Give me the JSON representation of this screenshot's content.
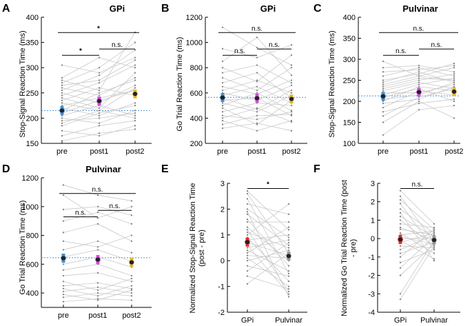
{
  "figure": {
    "panels": [
      {
        "letter": "A",
        "title": "GPi",
        "ylabel": "Stop-Signal Reaction Time (ms)",
        "ticks": [
          150,
          200,
          250,
          300,
          350,
          400
        ],
        "categories": [
          "pre",
          "post1",
          "post2"
        ],
        "means": [
          215,
          234,
          248
        ],
        "refline": 215,
        "colors": [
          "#3d8fd6",
          "#d34ce0",
          "#e2b630"
        ],
        "sig": [
          {
            "from": 0,
            "to": 1,
            "text": "*"
          },
          {
            "from": 1,
            "to": 2,
            "text": "n.s."
          },
          {
            "from": 0,
            "to": 2,
            "text": "*"
          }
        ]
      },
      {
        "letter": "B",
        "title": "GPi",
        "ylabel": "Go Trial Reaction Time (ms)",
        "ticks": [
          200,
          400,
          600,
          800,
          1000,
          1200
        ],
        "categories": [
          "pre",
          "post1",
          "post2"
        ],
        "means": [
          563,
          558,
          552
        ],
        "refline": 565,
        "colors": [
          "#3d8fd6",
          "#d34ce0",
          "#e2b630"
        ],
        "sig": [
          {
            "from": 0,
            "to": 1,
            "text": "n.s."
          },
          {
            "from": 1,
            "to": 2,
            "text": "n.s."
          },
          {
            "from": 0,
            "to": 2,
            "text": "n.s."
          }
        ]
      },
      {
        "letter": "C",
        "title": "Pulvinar",
        "ylabel": "Stop-Signal Reaction Time (ms)",
        "ticks": [
          100,
          150,
          200,
          250,
          300,
          350,
          400
        ],
        "categories": [
          "pre",
          "post1",
          "post2"
        ],
        "means": [
          212,
          222,
          223
        ],
        "refline": 213,
        "colors": [
          "#3d8fd6",
          "#d34ce0",
          "#e2b630"
        ],
        "sig": [
          {
            "from": 0,
            "to": 1,
            "text": "n.s."
          },
          {
            "from": 1,
            "to": 2,
            "text": "n.s."
          },
          {
            "from": 0,
            "to": 2,
            "text": "n.s."
          }
        ]
      },
      {
        "letter": "D",
        "title": "Pulvinar",
        "ylabel": "Go Trial Reaction Time (ms)",
        "ticks": [
          400,
          600,
          800,
          1000,
          1200
        ],
        "categories": [
          "pre",
          "post1",
          "post2"
        ],
        "means": [
          642,
          632,
          613
        ],
        "refline": 645,
        "colors": [
          "#3d8fd6",
          "#d34ce0",
          "#e2b630"
        ],
        "sig": [
          {
            "from": 0,
            "to": 1,
            "text": "n.s."
          },
          {
            "from": 1,
            "to": 2,
            "text": "n.s."
          },
          {
            "from": 0,
            "to": 2,
            "text": "n.s."
          }
        ]
      },
      {
        "letter": "E",
        "title": "",
        "ylabel": "Normalized Stop-Signal Reaction Time (post - pre)",
        "ticks": [
          -2,
          -1,
          0,
          1,
          2,
          3
        ],
        "categories": [
          "GPi",
          "Pulvinar"
        ],
        "means": [
          0.72,
          0.18
        ],
        "refline": null,
        "colors": [
          "#e03030",
          "#9a9a9a"
        ],
        "sig": [
          {
            "from": 0,
            "to": 1,
            "text": "*"
          }
        ]
      },
      {
        "letter": "F",
        "title": "",
        "ylabel": "Normalized Go Trial Reaction Time (post - pre)",
        "ticks": [
          -4,
          -3,
          -2,
          -1,
          0,
          1,
          2,
          3
        ],
        "categories": [
          "GPi",
          "Pulvinar"
        ],
        "means": [
          -0.05,
          -0.08
        ],
        "refline": null,
        "colors": [
          "#e03030",
          "#9a9a9a"
        ],
        "sig": [
          {
            "from": 0,
            "to": 1,
            "text": "n.s."
          }
        ]
      }
    ]
  },
  "chart_data": [
    {
      "type": "scatter",
      "panel": "A",
      "title": "GPi",
      "xlabel": "",
      "ylabel": "Stop-Signal Reaction Time (ms)",
      "categories": [
        "pre",
        "post1",
        "post2"
      ],
      "ylim": [
        150,
        400
      ],
      "means": [
        215,
        234,
        248
      ],
      "subjects": [
        [
          155,
          170,
          178
        ],
        [
          165,
          185,
          195
        ],
        [
          175,
          165,
          185
        ],
        [
          185,
          210,
          225
        ],
        [
          190,
          215,
          200
        ],
        [
          195,
          200,
          210
        ],
        [
          200,
          190,
          215
        ],
        [
          205,
          225,
          205
        ],
        [
          210,
          235,
          255
        ],
        [
          215,
          250,
          275
        ],
        [
          220,
          205,
          230
        ],
        [
          225,
          240,
          255
        ],
        [
          230,
          215,
          260
        ],
        [
          235,
          260,
          245
        ],
        [
          240,
          220,
          290
        ],
        [
          245,
          270,
          305
        ],
        [
          250,
          230,
          265
        ],
        [
          255,
          285,
          335
        ],
        [
          260,
          245,
          280
        ],
        [
          265,
          275,
          315
        ],
        [
          270,
          300,
          350
        ],
        [
          275,
          255,
          370
        ],
        [
          280,
          320,
          300
        ],
        [
          305,
          290,
          320
        ]
      ]
    },
    {
      "type": "scatter",
      "panel": "B",
      "title": "GPi",
      "xlabel": "",
      "ylabel": "Go Trial Reaction Time (ms)",
      "categories": [
        "pre",
        "post1",
        "post2"
      ],
      "ylim": [
        200,
        1200
      ],
      "means": [
        563,
        558,
        552
      ],
      "subjects": [
        [
          320,
          360,
          300
        ],
        [
          350,
          420,
          430
        ],
        [
          380,
          300,
          380
        ],
        [
          400,
          480,
          370
        ],
        [
          420,
          390,
          450
        ],
        [
          450,
          520,
          500
        ],
        [
          480,
          350,
          540
        ],
        [
          500,
          600,
          460
        ],
        [
          520,
          450,
          580
        ],
        [
          540,
          560,
          420
        ],
        [
          560,
          470,
          620
        ],
        [
          580,
          650,
          520
        ],
        [
          600,
          540,
          660
        ],
        [
          620,
          700,
          600
        ],
        [
          650,
          590,
          700
        ],
        [
          680,
          760,
          560
        ],
        [
          720,
          620,
          800
        ],
        [
          760,
          820,
          680
        ],
        [
          800,
          690,
          900
        ],
        [
          850,
          1040,
          740
        ],
        [
          950,
          880,
          980
        ],
        [
          1120,
          960,
          820
        ]
      ]
    },
    {
      "type": "scatter",
      "panel": "C",
      "title": "Pulvinar",
      "xlabel": "",
      "ylabel": "Stop-Signal Reaction Time (ms)",
      "categories": [
        "pre",
        "post1",
        "post2"
      ],
      "ylim": [
        100,
        400
      ],
      "means": [
        212,
        222,
        223
      ],
      "subjects": [
        [
          120,
          180,
          190
        ],
        [
          150,
          200,
          160
        ],
        [
          165,
          210,
          230
        ],
        [
          175,
          195,
          205
        ],
        [
          185,
          225,
          215
        ],
        [
          195,
          205,
          235
        ],
        [
          200,
          235,
          225
        ],
        [
          205,
          215,
          245
        ],
        [
          210,
          230,
          200
        ],
        [
          215,
          240,
          255
        ],
        [
          220,
          220,
          240
        ],
        [
          225,
          245,
          230
        ],
        [
          230,
          250,
          265
        ],
        [
          235,
          255,
          250
        ],
        [
          240,
          260,
          280
        ],
        [
          245,
          270,
          245
        ],
        [
          250,
          265,
          290
        ],
        [
          260,
          280,
          260
        ],
        [
          270,
          275,
          285
        ],
        [
          280,
          285,
          270
        ],
        [
          295,
          260,
          250
        ]
      ]
    },
    {
      "type": "scatter",
      "panel": "D",
      "title": "Pulvinar",
      "xlabel": "",
      "ylabel": "Go Trial Reaction Time (ms)",
      "categories": [
        "pre",
        "post1",
        "post2"
      ],
      "ylim": [
        300,
        1200
      ],
      "means": [
        642,
        632,
        613
      ],
      "subjects": [
        [
          340,
          360,
          350
        ],
        [
          370,
          400,
          380
        ],
        [
          390,
          350,
          420
        ],
        [
          410,
          440,
          400
        ],
        [
          430,
          380,
          450
        ],
        [
          450,
          470,
          430
        ],
        [
          480,
          420,
          500
        ],
        [
          520,
          540,
          480
        ],
        [
          560,
          600,
          520
        ],
        [
          600,
          650,
          580
        ],
        [
          650,
          700,
          620
        ],
        [
          700,
          760,
          680
        ],
        [
          760,
          720,
          800
        ],
        [
          820,
          880,
          760
        ],
        [
          900,
          960,
          880
        ],
        [
          980,
          1000,
          940
        ],
        [
          1080,
          920,
          1000
        ],
        [
          1150,
          1080,
          1040
        ]
      ]
    },
    {
      "type": "scatter",
      "panel": "E",
      "title": "",
      "xlabel": "",
      "ylabel": "Normalized Stop-Signal Reaction Time (post - pre)",
      "categories": [
        "GPi",
        "Pulvinar"
      ],
      "ylim": [
        -2,
        3
      ],
      "means": [
        0.72,
        0.18
      ],
      "subjects": [
        [
          2.7,
          1.2
        ],
        [
          2.6,
          0.3
        ],
        [
          2.4,
          -0.5
        ],
        [
          2.2,
          1.8
        ],
        [
          2.0,
          0.9
        ],
        [
          1.9,
          -1.4
        ],
        [
          1.8,
          0.6
        ],
        [
          1.6,
          -0.2
        ],
        [
          1.5,
          1.5
        ],
        [
          1.3,
          0.0
        ],
        [
          1.2,
          -1.2
        ],
        [
          1.1,
          0.5
        ],
        [
          1.0,
          2.2
        ],
        [
          0.9,
          -0.8
        ],
        [
          0.8,
          1.0
        ],
        [
          0.7,
          0.2
        ],
        [
          0.6,
          -1.3
        ],
        [
          0.5,
          0.8
        ],
        [
          0.4,
          -0.4
        ],
        [
          0.3,
          1.3
        ],
        [
          0.2,
          0.1
        ],
        [
          0.1,
          -1.0
        ],
        [
          0.0,
          0.4
        ],
        [
          -0.2,
          -0.6
        ],
        [
          -0.4,
          0.7
        ],
        [
          -0.6,
          -1.1
        ],
        [
          -0.9,
          0.3
        ]
      ]
    },
    {
      "type": "scatter",
      "panel": "F",
      "title": "",
      "xlabel": "",
      "ylabel": "Normalized Go Trial Reaction Time (post - pre)",
      "categories": [
        "GPi",
        "Pulvinar"
      ],
      "ylim": [
        -4,
        3
      ],
      "means": [
        -0.05,
        -0.08
      ],
      "subjects": [
        [
          2.6,
          0.8
        ],
        [
          2.3,
          -0.2
        ],
        [
          2.1,
          0.5
        ],
        [
          1.9,
          -0.6
        ],
        [
          1.6,
          0.3
        ],
        [
          1.4,
          -1.2
        ],
        [
          1.2,
          0.1
        ],
        [
          1.0,
          -0.4
        ],
        [
          0.8,
          0.6
        ],
        [
          0.6,
          -0.1
        ],
        [
          0.5,
          0.2
        ],
        [
          0.3,
          -0.8
        ],
        [
          0.2,
          0.4
        ],
        [
          0.1,
          -0.3
        ],
        [
          0.0,
          0.0
        ],
        [
          -0.1,
          -1.1
        ],
        [
          -0.2,
          0.3
        ],
        [
          -0.4,
          -0.5
        ],
        [
          -0.6,
          0.2
        ],
        [
          -0.8,
          -0.2
        ],
        [
          -1.0,
          0.5
        ],
        [
          -1.3,
          -0.6
        ],
        [
          -1.6,
          0.1
        ],
        [
          -2.0,
          -0.3
        ],
        [
          -3.0,
          -0.1
        ],
        [
          -3.3,
          -0.4
        ]
      ]
    }
  ]
}
